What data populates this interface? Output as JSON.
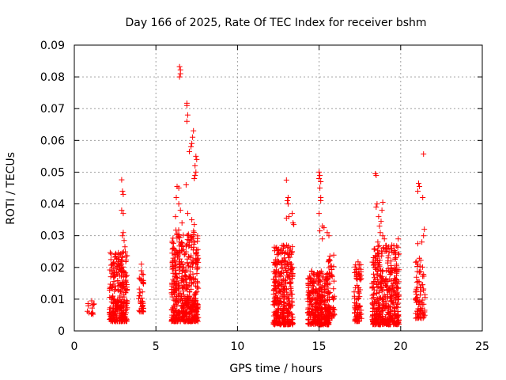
{
  "chart_data": {
    "type": "scatter",
    "title": "Day 166 of 2025, Rate Of TEC Index for receiver bshm",
    "xlabel": "GPS time / hours",
    "ylabel": "ROTI / TECUs",
    "xlim": [
      0,
      25
    ],
    "ylim": [
      0,
      0.09
    ],
    "x_ticks": [
      "0",
      "5",
      "10",
      "15",
      "20",
      "25"
    ],
    "y_ticks": [
      "0",
      "0.01",
      "0.02",
      "0.03",
      "0.04",
      "0.05",
      "0.06",
      "0.07",
      "0.08",
      "0.09"
    ],
    "grid": true,
    "marker": "+",
    "color": "#ff0000",
    "clusters": [
      {
        "x_range": [
          0.75,
          1.25
        ],
        "y_min": 0.005,
        "y_max": 0.0095,
        "count": 14,
        "outliers": []
      },
      {
        "x_range": [
          2.15,
          3.25
        ],
        "y_min": 0.003,
        "y_max": 0.025,
        "count": 300,
        "outliers": [
          [
            2.9,
            0.0476
          ],
          [
            2.95,
            0.044
          ],
          [
            3.0,
            0.043
          ],
          [
            2.9,
            0.038
          ],
          [
            3.0,
            0.037
          ],
          [
            3.0,
            0.031
          ],
          [
            2.95,
            0.03
          ],
          [
            3.05,
            0.0285
          ],
          [
            3.1,
            0.0265
          ]
        ]
      },
      {
        "x_range": [
          3.95,
          4.25
        ],
        "y_min": 0.006,
        "y_max": 0.022,
        "count": 40,
        "outliers": []
      },
      {
        "x_range": [
          5.95,
          7.6
        ],
        "y_min": 0.003,
        "y_max": 0.032,
        "count": 500,
        "outliers": [
          [
            6.45,
            0.0832
          ],
          [
            6.5,
            0.0822
          ],
          [
            6.5,
            0.081
          ],
          [
            6.45,
            0.08
          ],
          [
            6.9,
            0.0717
          ],
          [
            6.9,
            0.071
          ],
          [
            6.95,
            0.068
          ],
          [
            6.9,
            0.066
          ],
          [
            7.3,
            0.063
          ],
          [
            7.25,
            0.061
          ],
          [
            7.2,
            0.059
          ],
          [
            7.15,
            0.058
          ],
          [
            7.05,
            0.0565
          ],
          [
            7.45,
            0.055
          ],
          [
            7.5,
            0.054
          ],
          [
            7.4,
            0.052
          ],
          [
            7.45,
            0.05
          ],
          [
            7.35,
            0.048
          ],
          [
            7.4,
            0.049
          ],
          [
            6.3,
            0.0455
          ],
          [
            6.4,
            0.045
          ],
          [
            6.85,
            0.046
          ],
          [
            6.25,
            0.042
          ],
          [
            6.4,
            0.04
          ],
          [
            6.5,
            0.038
          ],
          [
            6.95,
            0.037
          ],
          [
            6.2,
            0.036
          ],
          [
            7.2,
            0.035
          ],
          [
            6.6,
            0.034
          ],
          [
            7.35,
            0.0335
          ]
        ]
      },
      {
        "x_range": [
          12.2,
          13.4
        ],
        "y_min": 0.002,
        "y_max": 0.027,
        "count": 350,
        "outliers": [
          [
            13.0,
            0.0475
          ],
          [
            13.1,
            0.042
          ],
          [
            13.05,
            0.041
          ],
          [
            13.1,
            0.04
          ],
          [
            13.0,
            0.0355
          ],
          [
            13.15,
            0.036
          ],
          [
            13.35,
            0.037
          ],
          [
            13.4,
            0.034
          ],
          [
            13.45,
            0.0335
          ]
        ]
      },
      {
        "x_range": [
          14.3,
          15.6
        ],
        "y_min": 0.002,
        "y_max": 0.019,
        "count": 330,
        "outliers": [
          [
            15.0,
            0.05
          ],
          [
            15.05,
            0.049
          ],
          [
            15.0,
            0.048
          ],
          [
            15.1,
            0.047
          ],
          [
            15.05,
            0.045
          ],
          [
            15.1,
            0.042
          ],
          [
            15.1,
            0.041
          ],
          [
            15.0,
            0.037
          ],
          [
            15.2,
            0.033
          ],
          [
            15.3,
            0.0325
          ],
          [
            15.5,
            0.031
          ],
          [
            15.6,
            0.03
          ],
          [
            15.05,
            0.0315
          ],
          [
            15.2,
            0.029
          ]
        ]
      },
      {
        "x_range": [
          15.55,
          15.95
        ],
        "y_min": 0.004,
        "y_max": 0.024,
        "count": 60,
        "outliers": []
      },
      {
        "x_range": [
          17.15,
          17.6
        ],
        "y_min": 0.003,
        "y_max": 0.022,
        "count": 90,
        "outliers": []
      },
      {
        "x_range": [
          18.25,
          19.9
        ],
        "y_min": 0.002,
        "y_max": 0.027,
        "count": 450,
        "outliers": [
          [
            18.45,
            0.0495
          ],
          [
            18.5,
            0.049
          ],
          [
            18.55,
            0.04
          ],
          [
            18.5,
            0.039
          ],
          [
            18.65,
            0.036
          ],
          [
            18.9,
            0.0405
          ],
          [
            18.85,
            0.038
          ],
          [
            18.8,
            0.0345
          ],
          [
            18.7,
            0.033
          ],
          [
            18.75,
            0.031
          ],
          [
            18.9,
            0.03
          ],
          [
            19.85,
            0.029
          ],
          [
            18.6,
            0.028
          ],
          [
            19.0,
            0.029
          ]
        ]
      },
      {
        "x_range": [
          20.9,
          21.5
        ],
        "y_min": 0.004,
        "y_max": 0.025,
        "count": 80,
        "outliers": [
          [
            21.4,
            0.0557
          ],
          [
            21.1,
            0.0465
          ],
          [
            21.15,
            0.0455
          ],
          [
            21.05,
            0.044
          ],
          [
            21.35,
            0.042
          ],
          [
            21.45,
            0.032
          ],
          [
            21.4,
            0.03
          ],
          [
            21.3,
            0.028
          ],
          [
            21.05,
            0.0275
          ]
        ]
      }
    ]
  }
}
